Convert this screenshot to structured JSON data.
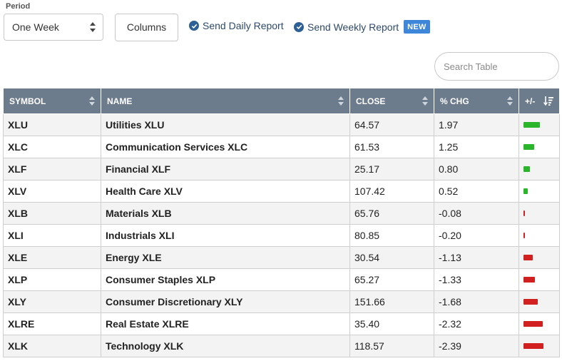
{
  "controls": {
    "period_label": "Period",
    "period_value": "One Week",
    "columns_label": "Columns",
    "daily_report_label": "Send Daily Report",
    "weekly_report_label": "Send Weekly Report",
    "new_badge": "NEW",
    "search_placeholder": "Search Table"
  },
  "table": {
    "headers": [
      "SYMBOL",
      "NAME",
      "CLOSE",
      "% CHG",
      "+/-"
    ],
    "rows": [
      {
        "symbol": "XLU",
        "name": "Utilities XLU",
        "close": "64.57",
        "chg": "1.97"
      },
      {
        "symbol": "XLC",
        "name": "Communication Services XLC",
        "close": "61.53",
        "chg": "1.25"
      },
      {
        "symbol": "XLF",
        "name": "Financial XLF",
        "close": "25.17",
        "chg": "0.80"
      },
      {
        "symbol": "XLV",
        "name": "Health Care XLV",
        "close": "107.42",
        "chg": "0.52"
      },
      {
        "symbol": "XLB",
        "name": "Materials XLB",
        "close": "65.76",
        "chg": "-0.08"
      },
      {
        "symbol": "XLI",
        "name": "Industrials XLI",
        "close": "80.85",
        "chg": "-0.20"
      },
      {
        "symbol": "XLE",
        "name": "Energy XLE",
        "close": "30.54",
        "chg": "-1.13"
      },
      {
        "symbol": "XLP",
        "name": "Consumer Staples XLP",
        "close": "65.27",
        "chg": "-1.33"
      },
      {
        "symbol": "XLY",
        "name": "Consumer Discretionary XLY",
        "close": "151.66",
        "chg": "-1.68"
      },
      {
        "symbol": "XLRE",
        "name": "Real Estate XLRE",
        "close": "35.40",
        "chg": "-2.32"
      },
      {
        "symbol": "XLK",
        "name": "Technology XLK",
        "close": "118.57",
        "chg": "-2.39"
      }
    ]
  },
  "colors": {
    "positive_bar": "#2bb52b",
    "negative_bar": "#d21f1f",
    "header_bg": "#6d7c8d",
    "link": "#1f4f7f",
    "check": "#2d6095",
    "badge": "#3d86d9"
  }
}
